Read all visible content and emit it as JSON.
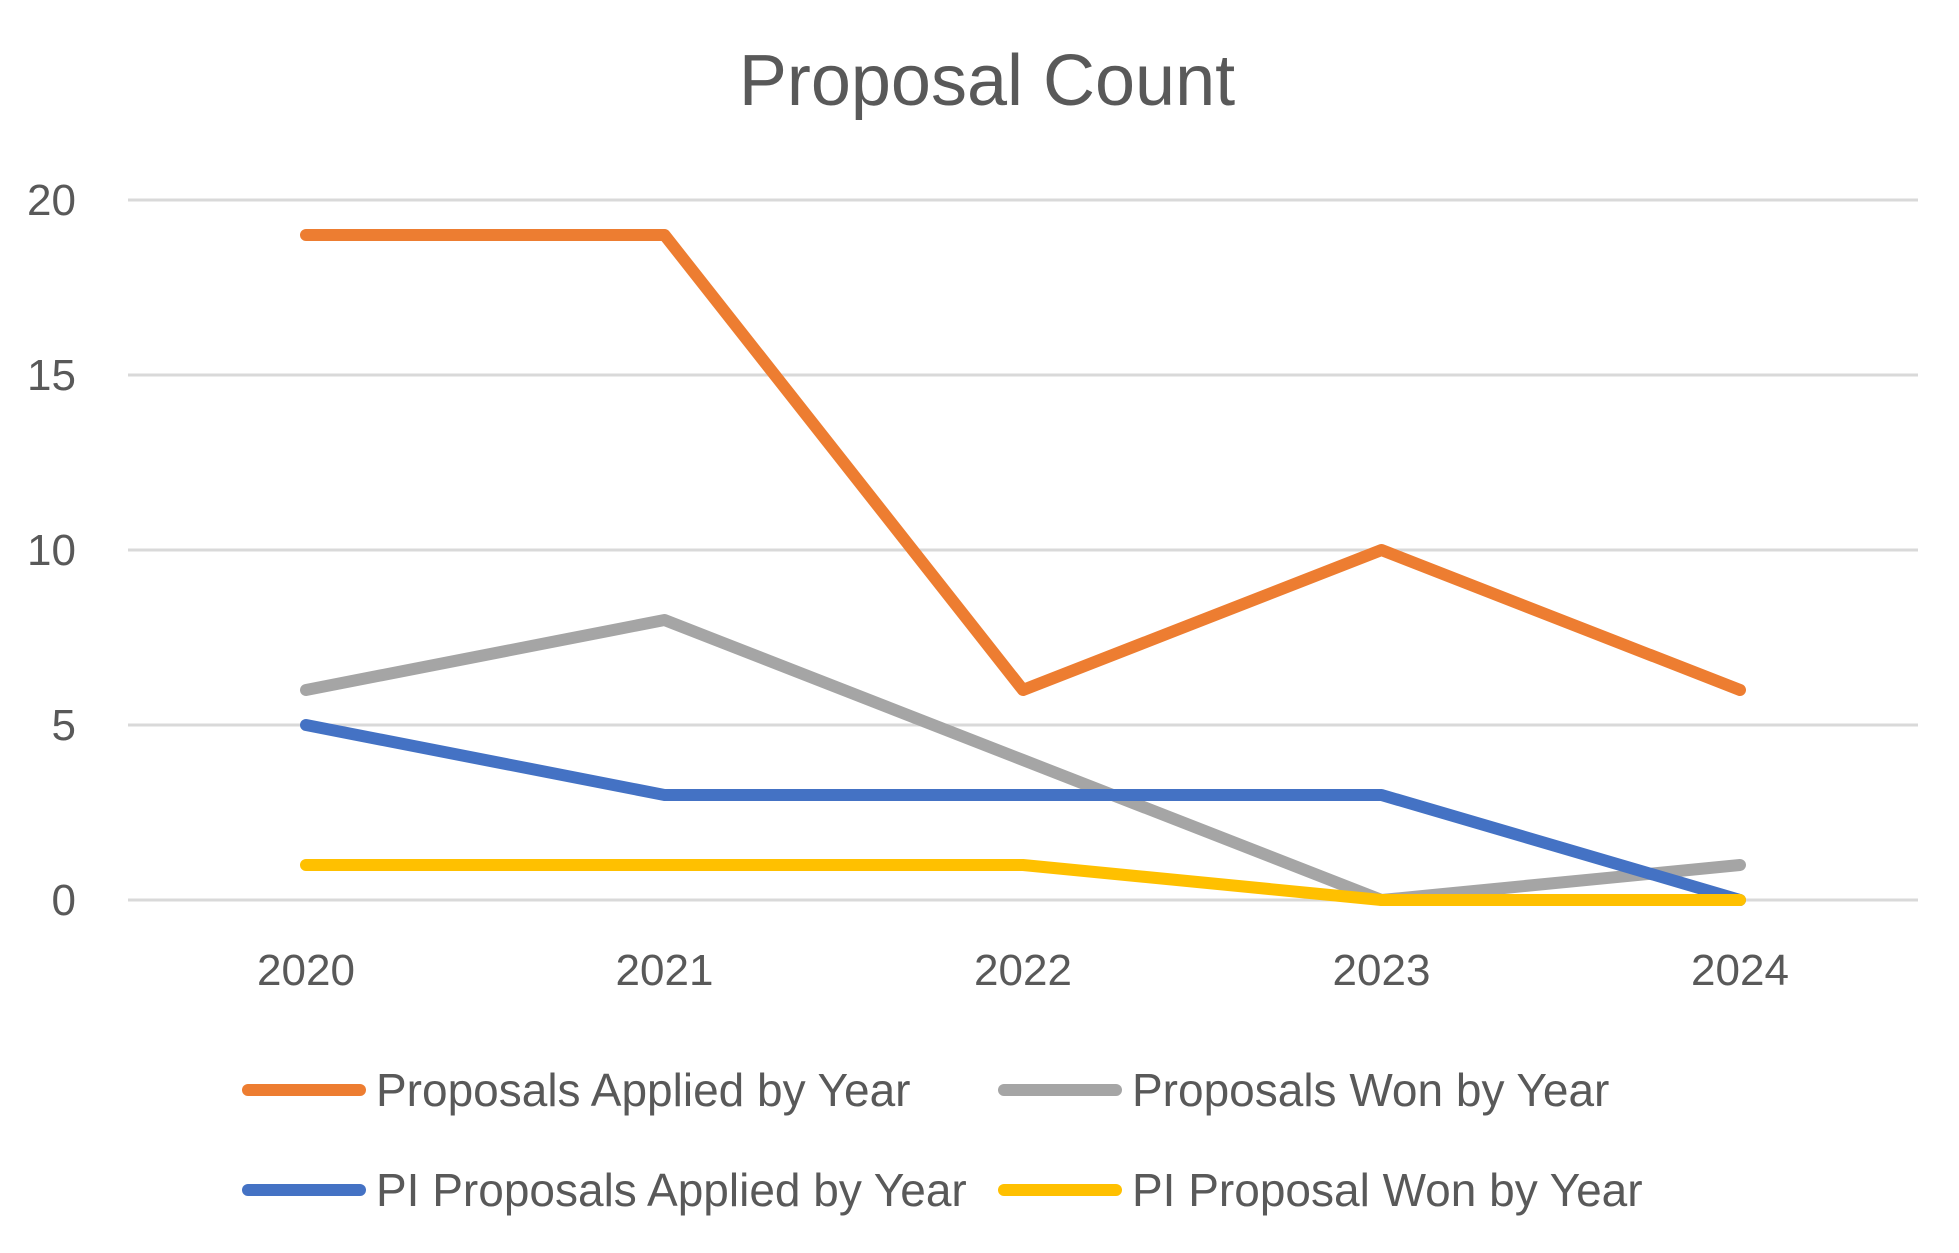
{
  "chart_data": {
    "type": "line",
    "title": "Proposal Count",
    "categories": [
      "2020",
      "2021",
      "2022",
      "2023",
      "2024"
    ],
    "ylim": [
      0,
      20
    ],
    "yticks": [
      "0",
      "5",
      "10",
      "15",
      "20"
    ],
    "grid": true,
    "legend_position": "bottom",
    "xlabel": "",
    "ylabel": "",
    "series": [
      {
        "name": "Proposals Applied by Year",
        "values": [
          19,
          19,
          6,
          10,
          6
        ],
        "color": "#ED7D31"
      },
      {
        "name": "Proposals Won by Year",
        "values": [
          6,
          8,
          4,
          0,
          1
        ],
        "color": "#A5A5A5"
      },
      {
        "name": "PI Proposals Applied by Year",
        "values": [
          5,
          3,
          3,
          3,
          0
        ],
        "color": "#4472C4"
      },
      {
        "name": "PI Proposal Won by Year",
        "values": [
          1,
          1,
          1,
          0,
          0
        ],
        "color": "#FFC000"
      }
    ]
  }
}
